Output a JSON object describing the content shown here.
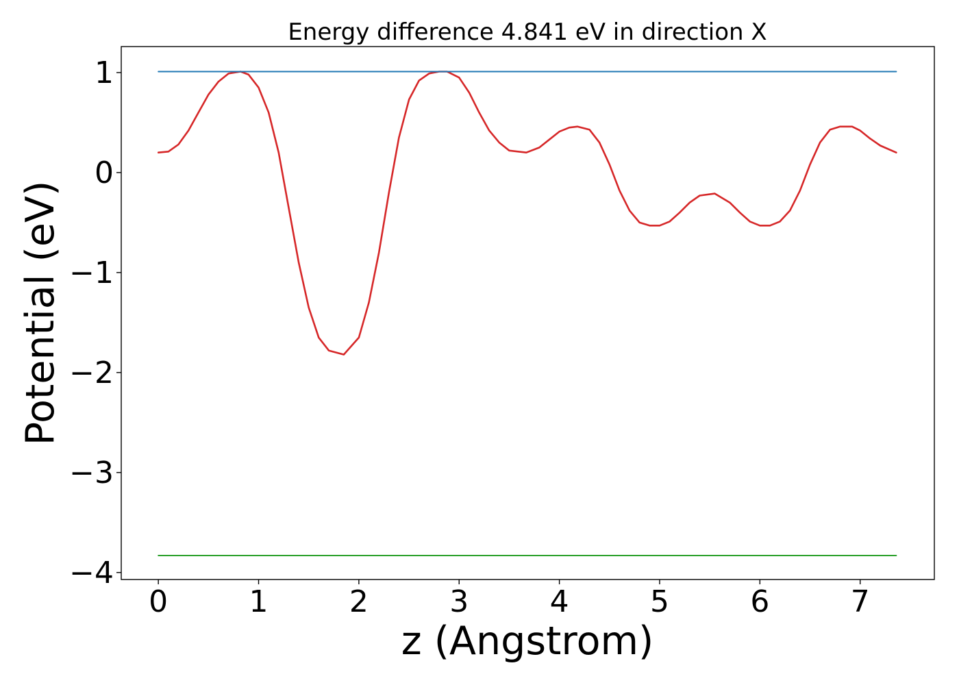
{
  "chart_data": {
    "type": "line",
    "title": "Energy difference 4.841 eV in direction X",
    "xlabel": "z (Angstrom)",
    "ylabel": "Potential (eV)",
    "xlim": [
      -0.37,
      7.74
    ],
    "ylim": [
      -4.07,
      1.26
    ],
    "xticks": [
      {
        "value": 0,
        "label": "0"
      },
      {
        "value": 1,
        "label": "1"
      },
      {
        "value": 2,
        "label": "2"
      },
      {
        "value": 3,
        "label": "3"
      },
      {
        "value": 4,
        "label": "4"
      },
      {
        "value": 5,
        "label": "5"
      },
      {
        "value": 6,
        "label": "6"
      },
      {
        "value": 7,
        "label": "7"
      }
    ],
    "yticks": [
      {
        "value": 1,
        "label": "1"
      },
      {
        "value": 0,
        "label": "0"
      },
      {
        "value": -1,
        "label": "−1"
      },
      {
        "value": -2,
        "label": "−2"
      },
      {
        "value": -3,
        "label": "−3"
      },
      {
        "value": -4,
        "label": "−4"
      }
    ],
    "grid": false,
    "legend": "none",
    "series": [
      {
        "color": "#d62728",
        "x": [
          0.0,
          0.1,
          0.2,
          0.3,
          0.4,
          0.5,
          0.6,
          0.7,
          0.82,
          0.9,
          1.0,
          1.1,
          1.2,
          1.3,
          1.4,
          1.5,
          1.6,
          1.7,
          1.85,
          2.0,
          2.1,
          2.2,
          2.3,
          2.4,
          2.5,
          2.6,
          2.7,
          2.8,
          2.88,
          3.0,
          3.1,
          3.2,
          3.3,
          3.4,
          3.5,
          3.67,
          3.8,
          3.9,
          4.0,
          4.1,
          4.18,
          4.3,
          4.4,
          4.5,
          4.6,
          4.7,
          4.8,
          4.9,
          5.0,
          5.1,
          5.2,
          5.3,
          5.4,
          5.55,
          5.7,
          5.8,
          5.9,
          6.0,
          6.1,
          6.2,
          6.3,
          6.4,
          6.5,
          6.6,
          6.7,
          6.8,
          6.92,
          7.0,
          7.1,
          7.2,
          7.36
        ],
        "y": [
          0.2,
          0.21,
          0.28,
          0.42,
          0.6,
          0.78,
          0.91,
          0.99,
          1.01,
          0.98,
          0.85,
          0.6,
          0.2,
          -0.35,
          -0.9,
          -1.35,
          -1.65,
          -1.78,
          -1.82,
          -1.65,
          -1.3,
          -0.8,
          -0.2,
          0.35,
          0.73,
          0.92,
          0.99,
          1.01,
          1.01,
          0.95,
          0.8,
          0.6,
          0.42,
          0.3,
          0.22,
          0.2,
          0.25,
          0.33,
          0.41,
          0.45,
          0.46,
          0.43,
          0.3,
          0.08,
          -0.18,
          -0.38,
          -0.5,
          -0.53,
          -0.53,
          -0.49,
          -0.4,
          -0.3,
          -0.23,
          -0.21,
          -0.3,
          -0.4,
          -0.49,
          -0.53,
          -0.53,
          -0.49,
          -0.38,
          -0.18,
          0.08,
          0.3,
          0.43,
          0.46,
          0.46,
          0.42,
          0.34,
          0.27,
          0.2
        ]
      },
      {
        "color": "#1f77b4",
        "x": [
          0.0,
          7.36
        ],
        "y": [
          1.01,
          1.01
        ]
      },
      {
        "color": "#2ca02c",
        "x": [
          0.0,
          7.36
        ],
        "y": [
          -3.83,
          -3.83
        ]
      }
    ]
  }
}
